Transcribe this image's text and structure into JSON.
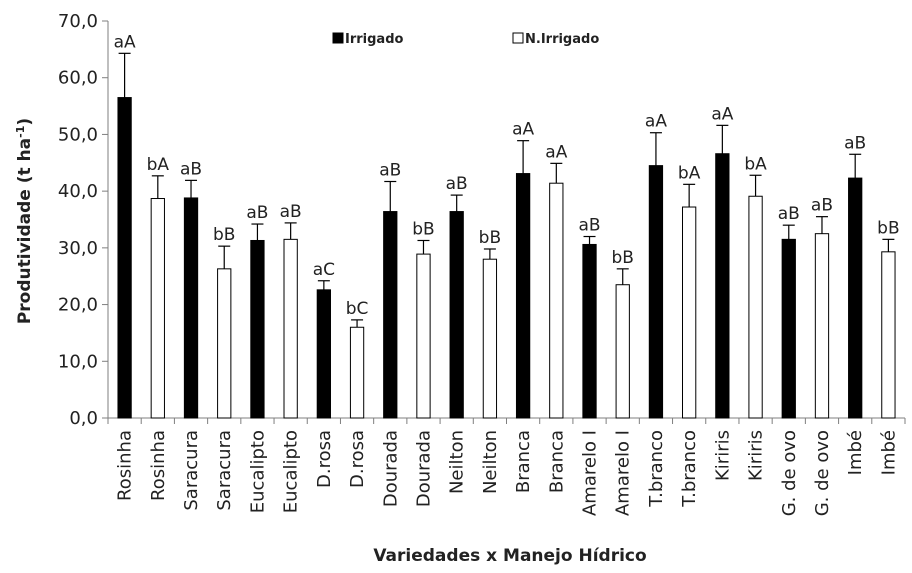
{
  "chart_data": {
    "type": "bar",
    "title": "",
    "ylabel_main": "Produtividade (t ha",
    "ylabel_sup": "-1",
    "ylabel_close": ")",
    "xlabel": "Variedades x Manejo Hídrico",
    "ylim": [
      0,
      70
    ],
    "yticks": [
      "0,0",
      "10,0",
      "20,0",
      "30,0",
      "40,0",
      "50,0",
      "60,0",
      "70,0"
    ],
    "legend_position": "top-center",
    "legend": [
      {
        "name": "Irrigado",
        "color": "#000000"
      },
      {
        "name": "N.Irrigado",
        "color": "#ffffff"
      }
    ],
    "categories": [
      "Rosinha",
      "Rosinha",
      "Saracura",
      "Saracura",
      "Eucalipto",
      "Eucalipto",
      "D.rosa",
      "D.rosa",
      "Dourada",
      "Dourada",
      "Neilton",
      "Neilton",
      "Branca",
      "Branca",
      "Amarelo I",
      "Amarelo I",
      "T.branco",
      "T.branco",
      "Kiriris",
      "Kiriris",
      "G. de ovo",
      "G. de ovo",
      "Imbé",
      "Imbé"
    ],
    "treatment": [
      "Irrigado",
      "N.Irrigado",
      "Irrigado",
      "N.Irrigado",
      "Irrigado",
      "N.Irrigado",
      "Irrigado",
      "N.Irrigado",
      "Irrigado",
      "N.Irrigado",
      "Irrigado",
      "N.Irrigado",
      "Irrigado",
      "N.Irrigado",
      "Irrigado",
      "N.Irrigado",
      "Irrigado",
      "N.Irrigado",
      "Irrigado",
      "N.Irrigado",
      "Irrigado",
      "N.Irrigado",
      "Irrigado",
      "N.Irrigado"
    ],
    "values": [
      56.5,
      38.7,
      38.8,
      26.3,
      31.3,
      31.5,
      22.6,
      16.0,
      36.4,
      28.9,
      36.4,
      28.0,
      43.1,
      41.4,
      30.6,
      23.5,
      44.5,
      37.2,
      46.6,
      39.1,
      31.5,
      32.5,
      42.3,
      29.3
    ],
    "error_upper": [
      64.3,
      42.7,
      41.9,
      30.3,
      34.2,
      34.4,
      24.2,
      17.3,
      41.7,
      31.3,
      39.3,
      29.8,
      48.9,
      44.9,
      32.0,
      26.3,
      50.3,
      41.2,
      51.6,
      42.8,
      34.0,
      35.5,
      46.5,
      31.5
    ],
    "data_labels": [
      "aA",
      "bA",
      "aB",
      "bB",
      "aB",
      "aB",
      "aC",
      "bC",
      "aB",
      "bB",
      "aB",
      "bB",
      "aA",
      "aA",
      "aB",
      "bB",
      "aA",
      "bA",
      "aA",
      "bA",
      "aB",
      "aB",
      "aB",
      "bB"
    ]
  }
}
